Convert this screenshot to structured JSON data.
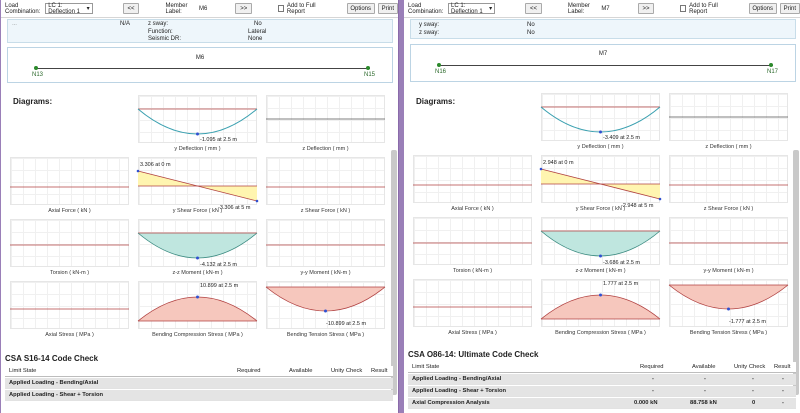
{
  "left": {
    "toolbar": {
      "load_combination_label": "Load Combination:",
      "load_combination_value": "LC 1: Deflection 1",
      "prev_label": "<<",
      "member_label_text": "Member Label:",
      "member_value": "M6",
      "next_label": ">>",
      "add_report_label": "Add to Full Report",
      "options_label": "Options",
      "print_label": "Print"
    },
    "props": {
      "rows": [
        {
          "key": "z sway:",
          "value": "No"
        },
        {
          "key": "Function:",
          "value": "Lateral"
        },
        {
          "key": "Seismic DR:",
          "value": "None"
        }
      ],
      "partial_left": "N/A"
    },
    "member": {
      "title": "M6",
      "start_node": "N13",
      "end_node": "N15"
    },
    "diagrams_heading": "Diagrams:",
    "cells": {
      "y_deflection": {
        "caption": "y Deflection ( mm )",
        "annotation": "-1.095 at 2.5 m"
      },
      "z_deflection": {
        "caption": "z Deflection ( mm )"
      },
      "axial_force": {
        "caption": "Axial Force ( kN )"
      },
      "y_shear": {
        "caption": "y Shear Force ( kN )",
        "start_annotation": "3.306 at 0 m",
        "end_annotation": "-3.306 at 5 m"
      },
      "z_shear": {
        "caption": "z Shear Force ( kN )"
      },
      "torsion": {
        "caption": "Torsion ( kN-m )"
      },
      "zz_moment": {
        "caption": "z-z Moment ( kN-m )",
        "annotation": "-4.132 at 2.5 m"
      },
      "yy_moment": {
        "caption": "y-y Moment ( kN-m )"
      },
      "axial_stress": {
        "caption": "Axial Stress ( MPa )"
      },
      "bending_compression": {
        "caption": "Bending Compression Stress ( MPa )",
        "annotation": "10.899 at 2.5 m"
      },
      "bending_tension": {
        "caption": "Bending Tension Stress ( MPa )",
        "annotation": "-10.899 at 2.5 m"
      }
    },
    "code_check": {
      "title": "CSA S16-14 Code Check",
      "headers": {
        "limit_state": "Limit State",
        "required": "Required",
        "available": "Available",
        "unity": "Unity Check",
        "result": "Result"
      },
      "groups": [
        "Applied Loading - Bending/Axial",
        "Applied Loading - Shear + Torsion"
      ]
    }
  },
  "right": {
    "toolbar": {
      "load_combination_label": "Load Combination:",
      "load_combination_value": "LC 1: Deflection 1",
      "prev_label": "<<",
      "member_label_text": "Member Label:",
      "member_value": "M7",
      "next_label": ">>",
      "add_report_label": "Add to Full Report",
      "options_label": "Options",
      "print_label": "Print"
    },
    "props": {
      "rows": [
        {
          "key": "y sway:",
          "value": "No"
        },
        {
          "key": "z sway:",
          "value": "No"
        }
      ]
    },
    "member": {
      "title": "M7",
      "start_node": "N16",
      "end_node": "N17"
    },
    "diagrams_heading": "Diagrams:",
    "cells": {
      "y_deflection": {
        "caption": "y Deflection ( mm )",
        "annotation": "-3.409 at 2.5 m"
      },
      "z_deflection": {
        "caption": "z Deflection ( mm )"
      },
      "axial_force": {
        "caption": "Axial Force ( kN )"
      },
      "y_shear": {
        "caption": "y Shear Force ( kN )",
        "start_annotation": "2.948 at 0 m",
        "end_annotation": "-2.948 at 5 m"
      },
      "z_shear": {
        "caption": "z Shear Force ( kN )"
      },
      "torsion": {
        "caption": "Torsion ( kN-m )"
      },
      "zz_moment": {
        "caption": "z-z Moment ( kN-m )",
        "annotation": "-3.686 at 2.5 m"
      },
      "yy_moment": {
        "caption": "y-y Moment ( kN-m )"
      },
      "axial_stress": {
        "caption": "Axial Stress ( MPa )"
      },
      "bending_compression": {
        "caption": "Bending Compression Stress ( MPa )",
        "annotation": "1.777 at 2.5 m"
      },
      "bending_tension": {
        "caption": "Bending Tension Stress ( MPa )",
        "annotation": "-1.777 at 2.5 m"
      }
    },
    "code_check": {
      "title": "CSA O86-14: Ultimate Code Check",
      "headers": {
        "limit_state": "Limit State",
        "required": "Required",
        "available": "Available",
        "unity": "Unity Check",
        "result": "Result"
      },
      "groups": [
        "Applied Loading - Bending/Axial",
        "Applied Loading - Shear + Torsion"
      ],
      "dash": "-",
      "axial_row": {
        "label": "Axial Compression Analysis",
        "required": "0.000 kN",
        "available": "88.758 kN",
        "unity": "0",
        "result": "-"
      }
    }
  },
  "colors": {
    "deflection_line": "#3aa0b0",
    "shear_fill": "#fff5b0",
    "moment_fill": "#bfe6df",
    "stress_fill": "#f6c7bd",
    "zero_line": "#b04040",
    "marker": "#3050d0"
  }
}
